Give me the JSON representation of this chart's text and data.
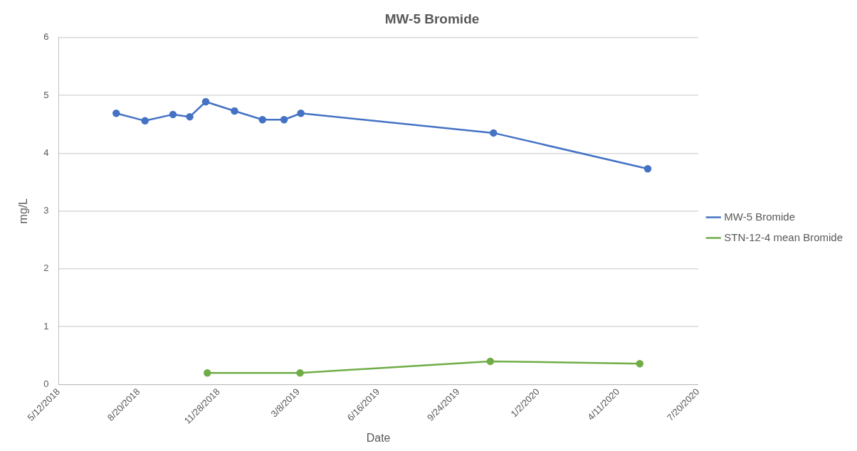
{
  "chart_data": {
    "type": "line",
    "title": "MW-5 Bromide",
    "xlabel": "Date",
    "ylabel": "mg/L",
    "series": [
      {
        "name": "MW-5 Bromide",
        "color": "#4472c4",
        "x": [
          "2018-07-23",
          "2018-08-28",
          "2018-10-02",
          "2018-10-23",
          "2018-11-12",
          "2018-12-18",
          "2019-01-22",
          "2019-02-18",
          "2019-03-11",
          "2019-11-07",
          "2020-05-18"
        ],
        "values": [
          4.69,
          4.56,
          4.67,
          4.63,
          4.89,
          4.73,
          4.58,
          4.58,
          4.69,
          4.35,
          3.73
        ]
      },
      {
        "name": "STN-12-4 mean Bromide",
        "color": "#70ad47",
        "x": [
          "2018-11-14",
          "2019-03-10",
          "2019-11-03",
          "2020-05-08"
        ],
        "values": [
          0.2,
          0.2,
          0.4,
          0.36
        ]
      }
    ],
    "xlim": [
      "2018-05-12",
      "2020-07-20"
    ],
    "xticks": [
      {
        "value": "2018-05-12",
        "label": "5/12/2018"
      },
      {
        "value": "2018-08-20",
        "label": "8/20/2018"
      },
      {
        "value": "2018-11-28",
        "label": "11/28/2018"
      },
      {
        "value": "2019-03-08",
        "label": "3/8/2019"
      },
      {
        "value": "2019-06-16",
        "label": "6/16/2019"
      },
      {
        "value": "2019-09-24",
        "label": "9/24/2019"
      },
      {
        "value": "2020-01-02",
        "label": "1/2/2020"
      },
      {
        "value": "2020-04-11",
        "label": "4/11/2020"
      },
      {
        "value": "2020-07-20",
        "label": "7/20/2020"
      }
    ],
    "ylim": [
      0,
      6
    ],
    "yticks": [
      0,
      1,
      2,
      3,
      4,
      5,
      6
    ],
    "grid": "y",
    "legend": "right",
    "marker": "circle",
    "line_style": "solid"
  }
}
